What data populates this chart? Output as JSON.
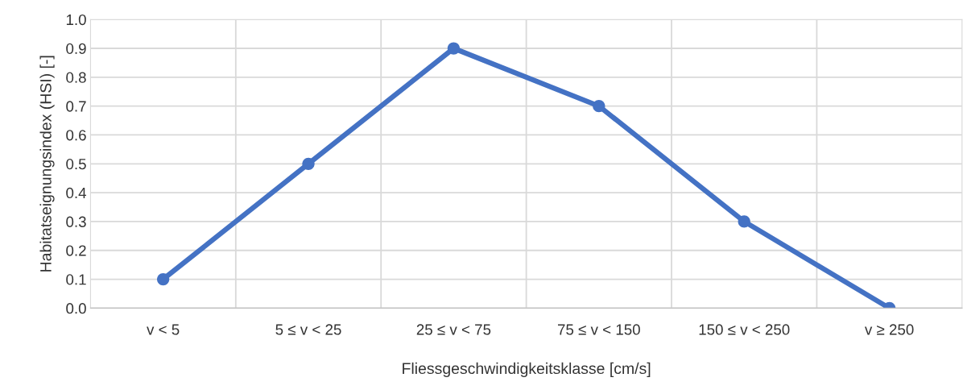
{
  "chart_data": {
    "type": "line",
    "xlabel": "Fliessgeschwindigkeitsklasse [cm/s]",
    "ylabel": "Habitatseignungsindex (HSI) [-]",
    "categories": [
      "v < 5",
      "5 ≤ v < 25",
      "25 ≤ v < 75",
      "75 ≤ v < 150",
      "150 ≤ v < 250",
      "v ≥ 250"
    ],
    "series": [
      {
        "color": "#4472c4",
        "values": [
          0.1,
          0.5,
          0.9,
          0.7,
          0.3,
          0.0
        ]
      }
    ],
    "ylim": [
      0,
      1
    ],
    "yticks": [
      {
        "value": 0,
        "label": "0.0"
      },
      0.1,
      0.2,
      0.3,
      0.4,
      0.5,
      0.6,
      0.7,
      0.8,
      0.9,
      {
        "value": 1,
        "label": "1.0"
      }
    ],
    "grid": true,
    "marker": "circle",
    "line_style": "solid"
  }
}
